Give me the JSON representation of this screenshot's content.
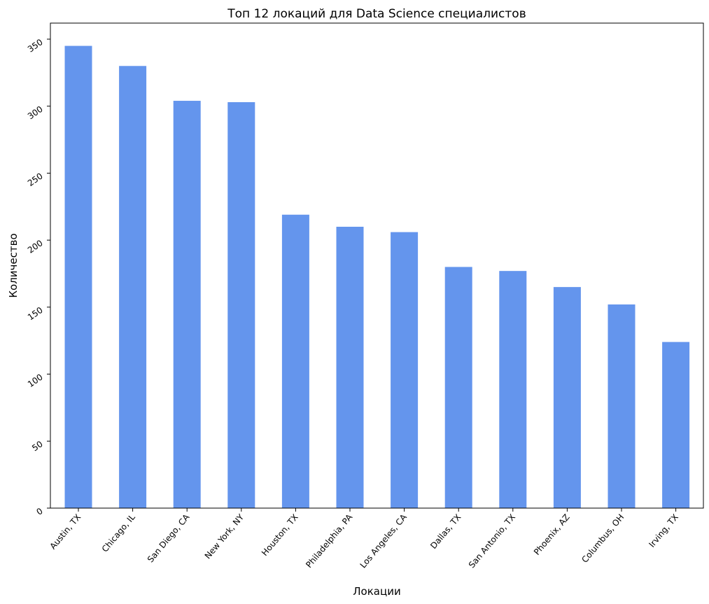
{
  "chart_data": {
    "type": "bar",
    "title": "Топ 12 локаций для Data Science специалистов",
    "xlabel": "Локации",
    "ylabel": "Количество",
    "categories": [
      "Austin, TX",
      "Chicago, IL",
      "San Diego, CA",
      "New York, NY",
      "Houston, TX",
      "Philadelphia, PA",
      "Los Angeles, CA",
      "Dallas, TX",
      "San Antonio, TX",
      "Phoenix, AZ",
      "Columbus, OH",
      "Irving, TX"
    ],
    "values": [
      345,
      330,
      304,
      303,
      219,
      210,
      206,
      180,
      177,
      165,
      152,
      124
    ],
    "ylim": [
      0,
      362
    ],
    "yticks": [
      0,
      50,
      100,
      150,
      200,
      250,
      300,
      350
    ],
    "grid": false,
    "bar_color": "#6495ED"
  }
}
